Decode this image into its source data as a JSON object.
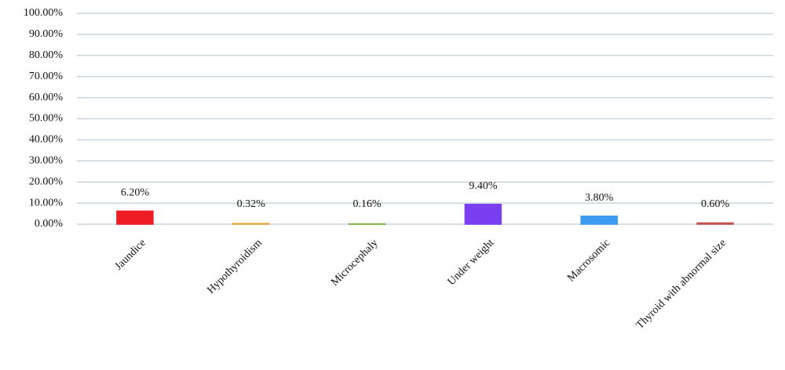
{
  "chart_data": {
    "type": "bar",
    "categories": [
      "Jaundice",
      "Hypothyroidism",
      "Microcephaly",
      "Under weight",
      "Macrosomic",
      "Thyroid with abnormal size"
    ],
    "values": [
      6.2,
      0.32,
      0.16,
      9.4,
      3.8,
      0.6
    ],
    "value_labels": [
      "6.20%",
      "0.32%",
      "0.16%",
      "9.40%",
      "3.80%",
      "0.60%"
    ],
    "colors": [
      "#ee1c25",
      "#e8a33c",
      "#7cb342",
      "#7b3ff2",
      "#3d9bf0",
      "#c0504d"
    ],
    "ylim": [
      0,
      100
    ],
    "yticks": [
      {
        "value": 0,
        "label": "0.00%"
      },
      {
        "value": 10,
        "label": "10.00%"
      },
      {
        "value": 20,
        "label": "20.00%"
      },
      {
        "value": 30,
        "label": "30.00%"
      },
      {
        "value": 40,
        "label": "40.00%"
      },
      {
        "value": 50,
        "label": "50.00%"
      },
      {
        "value": 60,
        "label": "60.00%"
      },
      {
        "value": 70,
        "label": "70.00%"
      },
      {
        "value": 80,
        "label": "80.00%"
      },
      {
        "value": 90,
        "label": "90.00%"
      },
      {
        "value": 100,
        "label": "100.00%"
      }
    ],
    "grid": true
  }
}
